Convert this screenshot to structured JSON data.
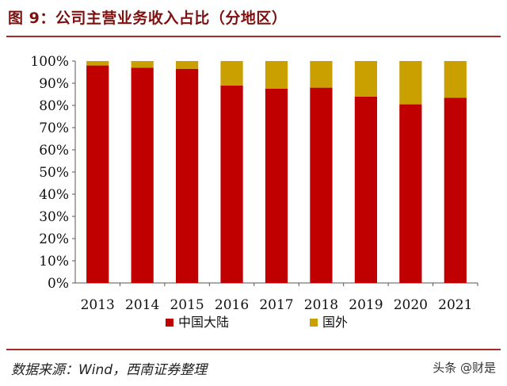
{
  "header": {
    "title": "图 9：公司主营业务收入占比（分地区）"
  },
  "footer": {
    "source": "数据来源：Wind，西南证券整理",
    "watermark": "头条 @财是"
  },
  "chart_data": {
    "type": "bar",
    "stacked": true,
    "categories": [
      "2013",
      "2014",
      "2015",
      "2016",
      "2017",
      "2018",
      "2019",
      "2020",
      "2021"
    ],
    "series": [
      {
        "name": "中国大陆",
        "color": "#c00000",
        "values": [
          98,
          97,
          96.5,
          89,
          87.5,
          88,
          84,
          80.5,
          83.5
        ]
      },
      {
        "name": "国外",
        "color": "#c9a000",
        "values": [
          2,
          3,
          3.5,
          11,
          12.5,
          12,
          16,
          19.5,
          16.5
        ]
      }
    ],
    "yticks": [
      "0%",
      "10%",
      "20%",
      "30%",
      "40%",
      "50%",
      "60%",
      "70%",
      "80%",
      "90%",
      "100%"
    ],
    "ylim": [
      0,
      100
    ],
    "grid": false,
    "legend_position": "bottom"
  }
}
